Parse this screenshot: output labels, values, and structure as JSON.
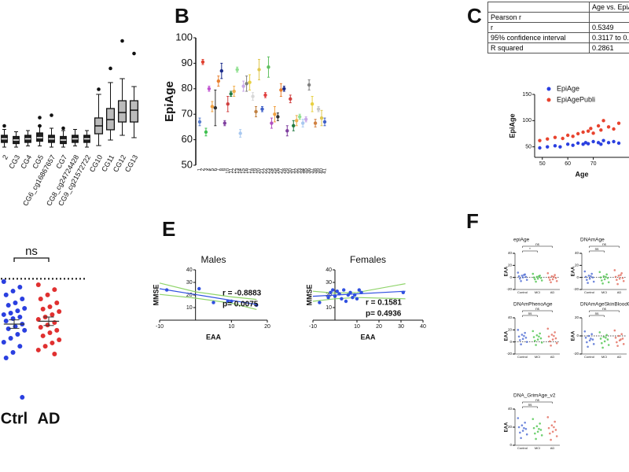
{
  "panel_labels": [
    "B",
    "C",
    "E",
    "F"
  ],
  "table": {
    "column": "Age vs. EpiAge",
    "rows": [
      {
        "label": "Pearson r"
      },
      {
        "label": "r",
        "value": 0.5349
      },
      {
        "label": "95% confidence interval",
        "value": "0.3117 to 0.7"
      },
      {
        "label": "R squared",
        "value": 0.2861
      }
    ]
  },
  "chart_data": [
    {
      "type": "box",
      "categories": [
        "2",
        "CG3",
        "CG4",
        "CG5",
        "CG6_cg16867657",
        "CG7",
        "CG8_cg24724428",
        "CG9_cg21572722",
        "CG10",
        "CG11",
        "CG12",
        "CG13"
      ],
      "colors": [
        "#222222",
        "#222222",
        "#222222",
        "#222222",
        "#222222",
        "#222222",
        "#222222",
        "#222222",
        "#bbbbbb",
        "#bbbbbb",
        "#bbbbbb",
        "#bbbbbb"
      ],
      "min": [
        2,
        2,
        3,
        3,
        2,
        2,
        3,
        2,
        3.3,
        8,
        12,
        10
      ],
      "q1": [
        6,
        5,
        6,
        7,
        6,
        5,
        6,
        6,
        13.3,
        16.7,
        23.3,
        23.3
      ],
      "median": [
        9,
        8,
        9,
        10,
        9,
        8,
        9,
        9,
        20,
        25.3,
        31.3,
        33.3
      ],
      "q3": [
        12,
        11,
        12,
        14,
        12,
        11,
        12,
        12,
        26.7,
        34.7,
        41.3,
        41.3
      ],
      "max": [
        17,
        15,
        16,
        20,
        18,
        16,
        17,
        16,
        46.7,
        56.7,
        60,
        53.3
      ],
      "outliers": [
        [
          20
        ],
        [],
        [],
        [
          27,
          20
        ],
        [
          29
        ],
        [
          18
        ],
        [],
        [],
        [
          51
        ],
        [
          68.7
        ],
        [
          92
        ],
        [
          81.3
        ]
      ],
      "ylim": [
        0,
        100
      ]
    },
    {
      "type": "errorbar",
      "ylabel": "EpiAge",
      "categories": [
        1,
        2,
        3,
        4,
        5,
        6,
        7,
        8,
        9,
        10,
        11,
        12,
        13,
        14,
        15,
        16,
        17,
        18,
        19,
        20,
        21,
        22,
        23,
        24,
        25,
        26,
        27,
        28,
        29,
        30,
        31,
        32,
        33,
        34,
        35,
        36,
        37,
        38,
        39,
        40,
        41
      ],
      "values": [
        67,
        90.5,
        63,
        80,
        73,
        72.5,
        83,
        87,
        66.5,
        74,
        78,
        79,
        87.5,
        62.5,
        81,
        82,
        82.5,
        77,
        71,
        87.5,
        72,
        77.5,
        88.5,
        66.5,
        70,
        69,
        79.5,
        80,
        63.5,
        76,
        65.5,
        67.5,
        69,
        66.5,
        68,
        81.5,
        74,
        66.5,
        72,
        68.5,
        67
      ],
      "errors": [
        1.5,
        1,
        1.5,
        1,
        2,
        7,
        2,
        3,
        1,
        3,
        1,
        2,
        1,
        1.5,
        2,
        3,
        3,
        1.5,
        2,
        4,
        1,
        1,
        4,
        2,
        3,
        1.5,
        2.5,
        1,
        2,
        1.5,
        2,
        2,
        1,
        1.5,
        1,
        2,
        3,
        1.5,
        1,
        3,
        1.5
      ],
      "colors": [
        "#5a7fd0",
        "#e04030",
        "#40c050",
        "#c050d0",
        "#f0a040",
        "#303030",
        "#e88030",
        "#1a2a8a",
        "#8040a0",
        "#d04040",
        "#207a40",
        "#f0b050",
        "#90e090",
        "#a8c8f0",
        "#c8a8e8",
        "#808080",
        "#e8d040",
        "#d8d8d8",
        "#c08040",
        "#e0c850",
        "#4060c8",
        "#e04040",
        "#60c060",
        "#b050c0",
        "#f0a040",
        "#303030",
        "#e88030",
        "#1a2a8a",
        "#8040a0",
        "#d04040",
        "#207a40",
        "#f0b050",
        "#90e090",
        "#a8c8f0",
        "#c8a8e8",
        "#808080",
        "#e8d040",
        "#d08040",
        "#c8c8c8",
        "#e0c850",
        "#4060c8"
      ],
      "ylim": [
        50,
        100
      ],
      "yticks": [
        50,
        60,
        70,
        80,
        90,
        100
      ]
    },
    {
      "type": "scatter",
      "xlabel": "Age",
      "ylabel": "EpiAge",
      "series": [
        {
          "name": "EpiAge",
          "color": "#2a3fe0",
          "x": [
            49,
            52,
            55,
            57,
            60,
            62,
            64,
            66,
            67,
            68,
            70,
            72,
            73,
            74,
            76,
            78,
            80
          ],
          "values": [
            48,
            50,
            52,
            50,
            55,
            53,
            57,
            55,
            58,
            56,
            60,
            58,
            55,
            62,
            58,
            60,
            57
          ]
        },
        {
          "name": "EpiAgePubli",
          "color": "#e8432e",
          "x": [
            49,
            52,
            55,
            58,
            60,
            62,
            64,
            66,
            68,
            69,
            70,
            72,
            73,
            74,
            76,
            78,
            80
          ],
          "values": [
            62,
            65,
            68,
            66,
            72,
            70,
            75,
            78,
            80,
            85,
            76,
            90,
            82,
            100,
            88,
            84,
            95
          ]
        }
      ],
      "xlim": [
        47,
        84
      ],
      "ylim": [
        30,
        150
      ],
      "xticks": [
        50,
        60,
        70
      ],
      "yticks": [
        50,
        100,
        150
      ]
    },
    {
      "type": "strip",
      "categories": [
        "Ctrl",
        "AD"
      ],
      "colors": [
        "#2a3fe0",
        "#e03030"
      ],
      "values": [
        [
          90,
          86.1,
          83.3,
          80.6,
          77.8,
          75,
          73.3,
          71.1,
          69.4,
          67.8,
          66.7,
          65,
          63.9,
          62.2,
          60,
          58.3,
          56.7,
          55.6,
          52.8,
          50,
          47.2,
          44.4,
          40,
          36.1,
          8.3
        ],
        [
          87.8,
          84.4,
          80.6,
          77.8,
          75,
          72.2,
          70.6,
          68.9,
          66.7,
          65,
          63.3,
          61.1,
          59.4,
          57.8,
          55.6,
          53.9,
          51.7,
          48.9,
          46.7,
          44.4,
          41.7,
          38.9
        ]
      ],
      "means": [
        60,
        62
      ],
      "errors": [
        3,
        3
      ],
      "ylim": [
        0,
        100
      ],
      "reference": 92,
      "annotations": [
        {
          "label": "ns",
          "groups": [
            "Ctrl",
            "AD"
          ]
        }
      ]
    },
    {
      "type": "scatter",
      "title": "Males",
      "xlabel": "EAA",
      "ylabel": "MMSE",
      "color": "#3050e0",
      "ci_color": "#8fd46a",
      "x": [
        -8,
        1,
        5,
        9,
        10,
        17
      ],
      "values": [
        24,
        25,
        14,
        15,
        15,
        12
      ],
      "fit": {
        "x": [
          -10,
          17
        ],
        "values": [
          25,
          12.5
        ]
      },
      "ci": {
        "x": [
          -10,
          0,
          10,
          17
        ],
        "upper": [
          29.5,
          22.5,
          18.5,
          16.5
        ],
        "lower": [
          20.5,
          17.5,
          13.5,
          8.5
        ]
      },
      "annotations": [
        "r = -0.8883",
        "p= 0.0075"
      ],
      "xlim": [
        -10,
        20
      ],
      "ylim": [
        0,
        40
      ],
      "xticks": [
        -10,
        10,
        20
      ],
      "yticks": [
        10,
        20,
        30,
        40
      ]
    },
    {
      "type": "scatter",
      "title": "Females",
      "xlabel": "EAA",
      "ylabel": "MMSE",
      "color": "#3050e0",
      "ci_color": "#8fd46a",
      "x": [
        -7,
        -3,
        -2,
        -1,
        0,
        1,
        2,
        3,
        4,
        5,
        6,
        7,
        8,
        9,
        10,
        11,
        12,
        31
      ],
      "values": [
        14,
        18,
        22,
        24,
        19,
        23,
        21,
        17,
        24,
        15,
        20,
        22,
        18,
        20,
        17,
        24,
        22,
        22
      ],
      "fit": {
        "x": [
          -10,
          32
        ],
        "values": [
          19,
          23
        ]
      },
      "ci": {
        "x": [
          -10,
          0,
          10,
          32
        ],
        "upper": [
          23,
          21.5,
          22,
          29
        ],
        "lower": [
          15,
          17,
          18,
          17
        ]
      },
      "annotations": [
        "r = 0.1581",
        "p= 0.4936"
      ],
      "xlim": [
        -10,
        40
      ],
      "ylim": [
        0,
        40
      ],
      "xticks": [
        -10,
        10,
        20,
        30,
        40
      ],
      "yticks": [
        10,
        20,
        30,
        40
      ]
    },
    {
      "type": "strip",
      "title": "epiAge",
      "ylabel": "EAA",
      "categories": [
        "Control",
        "MCI",
        "AD"
      ],
      "colors": [
        "#4060d0",
        "#40c040",
        "#e06050"
      ],
      "values": [
        [
          8,
          5,
          3,
          2,
          1,
          0,
          -2,
          -4,
          4,
          -6
        ],
        [
          6,
          3,
          1,
          0,
          -1,
          -2,
          -3,
          -5,
          2,
          -7
        ],
        [
          7,
          4,
          2,
          0,
          -1,
          -3,
          -4,
          -6,
          1,
          -8
        ]
      ],
      "ylim": [
        -20,
        40
      ],
      "yticks": [
        -20,
        0,
        20,
        40
      ],
      "reference": 0,
      "annotations": [
        {
          "label": "*",
          "groups": [
            "Control",
            "MCI"
          ]
        },
        {
          "label": "ns",
          "groups": [
            "Control",
            "AD"
          ]
        }
      ]
    },
    {
      "type": "strip",
      "title": "DNAmAge",
      "ylabel": "EAA",
      "categories": [
        "Control",
        "MCI",
        "AD"
      ],
      "colors": [
        "#4060d0",
        "#40c040",
        "#e06050"
      ],
      "values": [
        [
          10,
          6,
          3,
          1,
          0,
          -2,
          -4,
          -7,
          2,
          -9
        ],
        [
          9,
          5,
          2,
          0,
          -1,
          -3,
          -5,
          -8,
          1,
          -10
        ],
        [
          12,
          7,
          3,
          1,
          -1,
          -2,
          -4,
          -6,
          4,
          -11
        ]
      ],
      "ylim": [
        -20,
        40
      ],
      "yticks": [
        -20,
        0,
        20,
        40
      ],
      "reference": 0,
      "annotations": [
        {
          "label": "ns",
          "groups": [
            "Control",
            "MCI"
          ]
        },
        {
          "label": "ns",
          "groups": [
            "Control",
            "AD"
          ]
        }
      ]
    },
    {
      "type": "strip",
      "title": "DNAmPhenoAge",
      "ylabel": "EAA",
      "categories": [
        "Control",
        "MCI",
        "AD"
      ],
      "colors": [
        "#4060d0",
        "#40c040",
        "#e06050"
      ],
      "values": [
        [
          20,
          15,
          12,
          9,
          7,
          5,
          3,
          0,
          10,
          -4
        ],
        [
          18,
          14,
          11,
          8,
          6,
          4,
          2,
          -1,
          9,
          -5
        ],
        [
          22,
          16,
          12,
          9,
          6,
          4,
          1,
          -2,
          10,
          -6
        ]
      ],
      "ylim": [
        -20,
        40
      ],
      "yticks": [
        -20,
        0,
        20,
        40
      ],
      "reference": 0,
      "annotations": [
        {
          "label": "ns",
          "groups": [
            "Control",
            "MCI"
          ]
        },
        {
          "label": "ns",
          "groups": [
            "Control",
            "AD"
          ]
        }
      ]
    },
    {
      "type": "strip",
      "title": "DNAmAgeSkinBloodCl",
      "ylabel": "EAA",
      "categories": [
        "Control",
        "MCI",
        "AD"
      ],
      "colors": [
        "#4060d0",
        "#40c040",
        "#e06050"
      ],
      "values": [
        [
          5,
          2,
          0,
          -2,
          -4,
          -5,
          -7,
          -9,
          -3,
          -12
        ],
        [
          4,
          1,
          -1,
          -3,
          -4,
          -6,
          -8,
          -10,
          -2,
          -13
        ],
        [
          6,
          2,
          0,
          -2,
          -3,
          -5,
          -7,
          -9,
          -4,
          -11
        ]
      ],
      "ylim": [
        -20,
        20
      ],
      "yticks": [
        -20,
        0,
        20
      ],
      "reference": 0,
      "annotations": [
        {
          "label": "ns",
          "groups": [
            "Control",
            "MCI"
          ]
        },
        {
          "label": "ns",
          "groups": [
            "Control",
            "AD"
          ]
        }
      ]
    },
    {
      "type": "strip",
      "title": "DNA_GrimAge_v2",
      "ylabel": "EAA",
      "categories": [
        "Control",
        "MCI",
        "AD"
      ],
      "colors": [
        "#4060d0",
        "#40c040",
        "#e06050"
      ],
      "values": [
        [
          30,
          25,
          22,
          20,
          18,
          16,
          14,
          12,
          19,
          8
        ],
        [
          29,
          24,
          21,
          19,
          17,
          15,
          13,
          11,
          18,
          7
        ],
        [
          31,
          26,
          22,
          19,
          17,
          15,
          13,
          10,
          20,
          6
        ]
      ],
      "ylim": [
        0,
        40
      ],
      "yticks": [
        0,
        20,
        40
      ],
      "annotations": [
        {
          "label": "ns",
          "groups": [
            "Control",
            "MCI"
          ]
        },
        {
          "label": "ns",
          "groups": [
            "Control",
            "AD"
          ]
        }
      ]
    }
  ]
}
